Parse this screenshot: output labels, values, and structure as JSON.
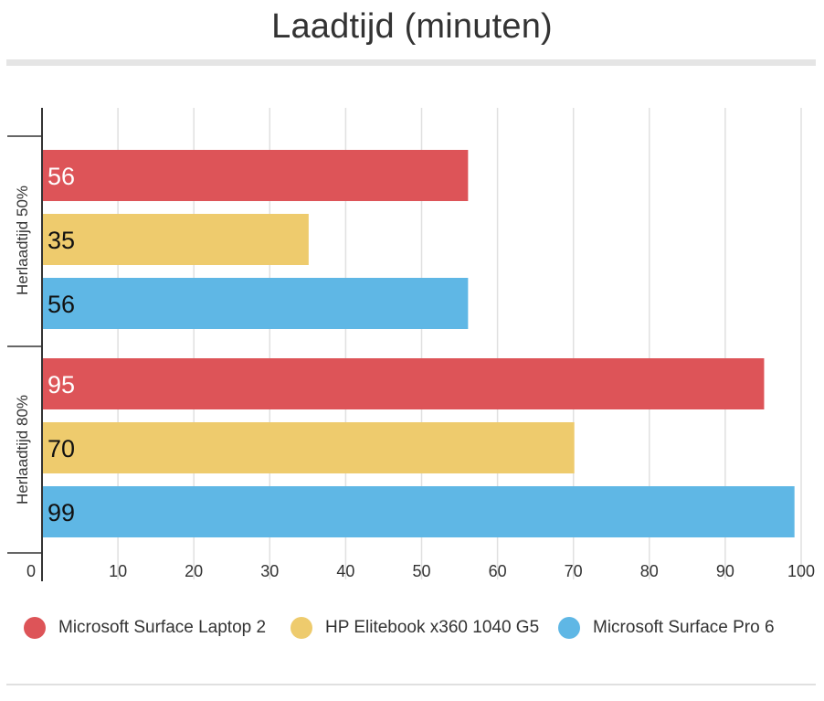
{
  "title": "Laadtijd (minuten)",
  "colors": {
    "series": [
      "#dd5458",
      "#eecb6d",
      "#5fb7e5"
    ],
    "grid": "#e0e0e0",
    "axis": "#333333"
  },
  "chart_data": {
    "type": "bar",
    "orientation": "horizontal",
    "title": "Laadtijd (minuten)",
    "categories": [
      "Herlaadtijd 50%",
      "Herlaadtijd 80%"
    ],
    "series": [
      {
        "name": "Microsoft Surface Laptop 2",
        "values": [
          56,
          95
        ],
        "labels": [
          "56",
          "95"
        ]
      },
      {
        "name": "HP Elitebook x360 1040 G5",
        "values": [
          35,
          70
        ],
        "labels": [
          "35",
          "70"
        ]
      },
      {
        "name": "Microsoft Surface Pro 6",
        "values": [
          56,
          99
        ],
        "labels": [
          "56",
          "99"
        ]
      }
    ],
    "xlim": [
      0,
      100
    ],
    "xticks": [
      "0",
      "10",
      "20",
      "30",
      "40",
      "50",
      "60",
      "70",
      "80",
      "90",
      "100"
    ],
    "grid": true,
    "legend_position": "bottom"
  }
}
